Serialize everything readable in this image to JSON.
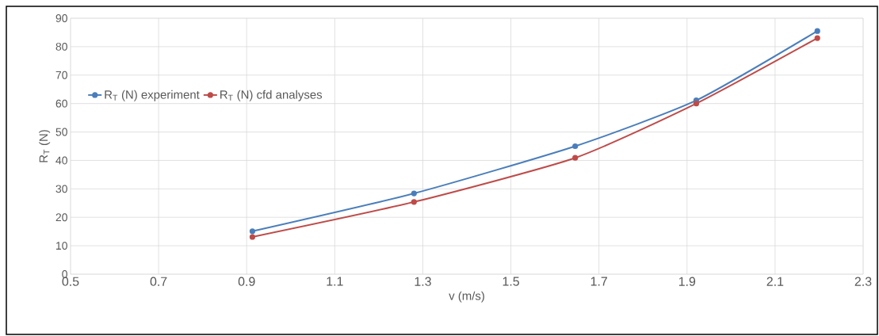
{
  "chart_data": {
    "type": "line",
    "xlabel": "v (m/s)",
    "ylabel": "R$_{T}$ (N)",
    "x": [
      0.913,
      1.28,
      1.646,
      1.921,
      2.196
    ],
    "series": [
      {
        "name": "R$_{T}$ (N) experiment",
        "color": "#4a7ebb",
        "values": [
          15.1,
          28.4,
          45.0,
          61.1,
          85.5
        ]
      },
      {
        "name": "R$_{T}$ (N) cfd analyses",
        "color": "#be4b48",
        "values": [
          13.1,
          25.4,
          40.9,
          60.0,
          83.0
        ]
      }
    ],
    "xlim": [
      0.5,
      2.3
    ],
    "xticks": [
      0.5,
      0.7,
      0.9,
      1.1,
      1.3,
      1.5,
      1.7,
      1.9,
      2.1,
      2.3
    ],
    "ylim": [
      0,
      90
    ],
    "yticks": [
      0,
      10,
      20,
      30,
      40,
      50,
      60,
      70,
      80,
      90
    ],
    "grid": true,
    "legend": "top left",
    "marker": "circle",
    "line_style": "solid"
  }
}
